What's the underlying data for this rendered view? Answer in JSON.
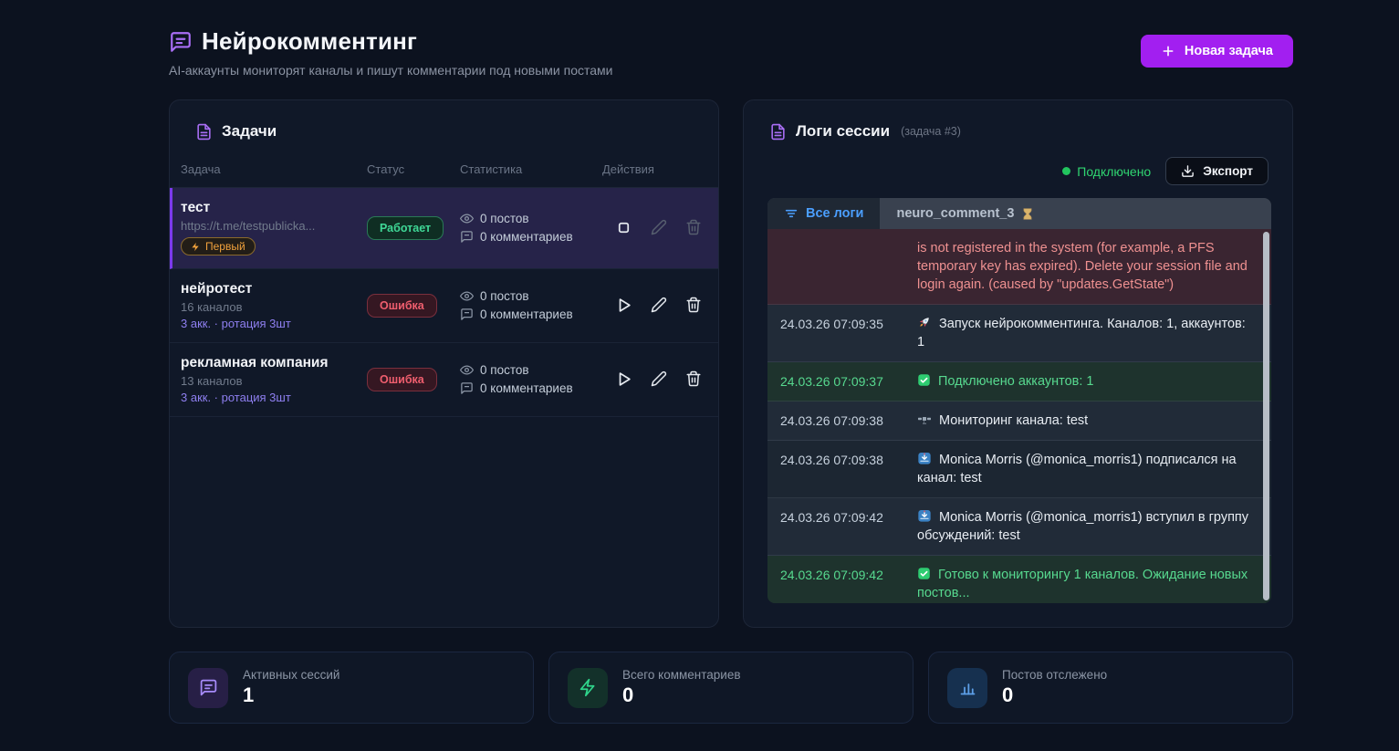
{
  "header": {
    "title": "Нейрокомментинг",
    "subtitle": "AI-аккаунты мониторят каналы и пишут комментарии под новыми постами",
    "new_task_button": "Новая задача"
  },
  "tasks_panel": {
    "title": "Задачи",
    "columns": [
      "Задача",
      "Статус",
      "Статистика",
      "Действия"
    ],
    "rows": [
      {
        "name": "тест",
        "subtitle": "https://t.me/testpublicka...",
        "badge": "Первый",
        "status": "Работает",
        "status_type": "running",
        "posts": "0 постов",
        "comments": "0 комментариев",
        "selected": true,
        "actions": [
          "stop",
          "edit",
          "delete"
        ]
      },
      {
        "name": "нейротест",
        "subtitle": "16 каналов",
        "meta": "3 акк. · ротация 3шт",
        "status": "Ошибка",
        "status_type": "error",
        "posts": "0 постов",
        "comments": "0 комментариев",
        "selected": false,
        "actions": [
          "play",
          "edit",
          "delete"
        ]
      },
      {
        "name": "рекламная компания",
        "subtitle": "13 каналов",
        "meta": "3 акк. · ротация 3шт",
        "status": "Ошибка",
        "status_type": "error",
        "posts": "0 постов",
        "comments": "0 комментариев",
        "selected": false,
        "actions": [
          "play",
          "edit",
          "delete"
        ]
      }
    ]
  },
  "logs_panel": {
    "title": "Логи сессии",
    "subtitle": "(задача #3)",
    "connection_status": "Подключено",
    "export_button": "Экспорт",
    "tabs": [
      {
        "label": "Все логи",
        "active": true,
        "icon": "filter"
      },
      {
        "label": "neuro_comment_3",
        "active": false,
        "icon": "hourglass"
      }
    ],
    "entries": [
      {
        "time": "",
        "icon": "",
        "type": "error",
        "text": "is not registered in the system (for example, a PFS temporary key has expired). Delete your session file and login again. (caused by \"updates.GetState\")"
      },
      {
        "time": "24.03.26 07:09:35",
        "icon": "rocket",
        "type": "info",
        "text": "Запуск нейрокомментинга. Каналов: 1, аккаунтов: 1"
      },
      {
        "time": "24.03.26 07:09:37",
        "icon": "check",
        "type": "success",
        "text": "Подключено аккаунтов: 1"
      },
      {
        "time": "24.03.26 07:09:38",
        "icon": "satellite",
        "type": "info",
        "text": "Мониторинг канала: test"
      },
      {
        "time": "24.03.26 07:09:38",
        "icon": "inbox",
        "type": "info",
        "text": "Monica Morris (@monica_morris1) подписался на канал: test"
      },
      {
        "time": "24.03.26 07:09:42",
        "icon": "inbox",
        "type": "info",
        "text": "Monica Morris (@monica_morris1) вступил в группу обсуждений: test"
      },
      {
        "time": "24.03.26 07:09:42",
        "icon": "check",
        "type": "success",
        "text": "Готово к мониторингу 1 каналов. Ожидание новых постов..."
      }
    ]
  },
  "stats_cards": [
    {
      "label": "Активных сессий",
      "value": "1",
      "icon": "chat",
      "color": "purple"
    },
    {
      "label": "Всего комментариев",
      "value": "0",
      "icon": "lightning",
      "color": "green"
    },
    {
      "label": "Постов отслежено",
      "value": "0",
      "icon": "chart",
      "color": "blue"
    }
  ],
  "colors": {
    "accent_purple": "#a21ff0",
    "success_green": "#3fd796",
    "error_red": "#ef5e6e",
    "badge_amber": "#f0a13c",
    "tab_blue": "#4b9fff",
    "background": "#0c121f",
    "panel": "#101828"
  }
}
